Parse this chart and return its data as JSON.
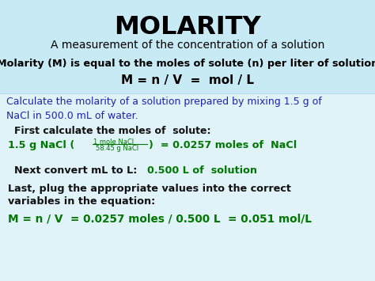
{
  "bg_color": "#dff3f9",
  "header_bg": "#c8eaf5",
  "title": "MOLARITY",
  "title_color": "#000000",
  "subtitle": "A measurement of the concentration of a solution",
  "subtitle_color": "#000000",
  "def_line1": "Molarity (M) is equal to the moles of solute (n) per liter of solution",
  "def_line2": "M = n / V  =  mol / L",
  "def_color": "#000000",
  "question_color": "#2222aa",
  "green_color": "#007700",
  "black_color": "#111111",
  "question_line1": "Calculate the molarity of a solution prepared by mixing 1.5 g of",
  "question_line2": "NaCl in 500.0 mL of water.",
  "step1_label": "First calculate the moles of  solute:",
  "step1_eq_part1": "1.5 g NaCl (",
  "step1_frac_top": "1 mole NaCl",
  "step1_frac_bot": "58.45 g NaCl",
  "step1_eq_part2": ")  = 0.0257 moles of  NaCl",
  "step2_label": "Next convert mL to L:    ",
  "step2_value": "0.500 L of  solution",
  "step3_label1": "Last, plug the appropriate values into the correct",
  "step3_label2": "variables in the equation:",
  "step3_eq": "M = n / V  = 0.0257 moles / 0.500 L  = 0.051 mol/L",
  "figw": 4.74,
  "figh": 3.55,
  "dpi": 100
}
